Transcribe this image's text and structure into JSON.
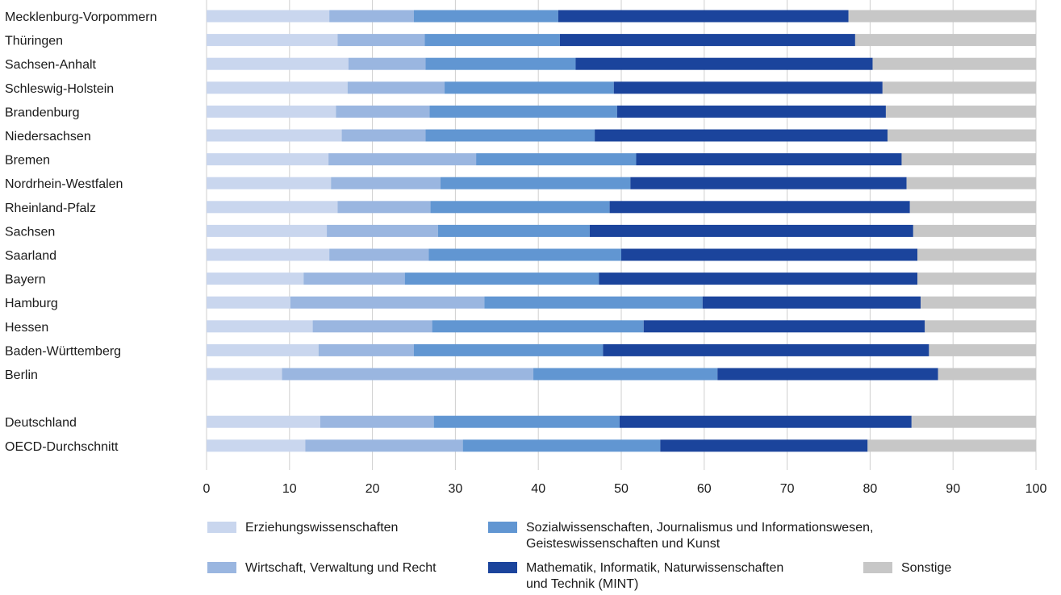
{
  "chart_data": {
    "type": "bar",
    "orientation": "horizontal",
    "stacked": true,
    "categories": [
      "Mecklenburg-Vorpommern",
      "Thüringen",
      "Sachsen-Anhalt",
      "Schleswig-Holstein",
      "Brandenburg",
      "Niedersachsen",
      "Bremen",
      "Nordrhein-Westfalen",
      "Rheinland-Pfalz",
      "Sachsen",
      "Saarland",
      "Bayern",
      "Hamburg",
      "Hessen",
      "Baden-Württemberg",
      "Berlin",
      "",
      "Deutschland",
      "OECD-Durchschnitt"
    ],
    "series": [
      {
        "name": "Erziehungswissenschaften",
        "color": "#c9d6ee",
        "values": [
          14.8,
          15.8,
          17.1,
          17.0,
          15.6,
          16.3,
          14.7,
          15.0,
          15.8,
          14.5,
          14.8,
          11.7,
          10.1,
          12.8,
          13.5,
          9.1,
          null,
          13.7,
          11.9
        ]
      },
      {
        "name": "Wirtschaft, Verwaltung und Recht",
        "color": "#9ab6e0",
        "values": [
          10.2,
          10.5,
          9.3,
          11.7,
          11.3,
          10.1,
          17.8,
          13.2,
          11.2,
          13.4,
          12.0,
          12.2,
          23.4,
          14.4,
          11.5,
          30.3,
          null,
          13.7,
          19.0
        ]
      },
      {
        "name": "Sozialwissenschaften, Journalismus und Informationswesen, Geisteswissenschaften und Kunst",
        "color": "#6196d2",
        "values": [
          17.4,
          16.3,
          18.1,
          20.4,
          22.6,
          20.4,
          19.3,
          22.9,
          21.6,
          18.3,
          23.2,
          23.4,
          26.3,
          25.5,
          22.8,
          22.2,
          null,
          22.4,
          23.8
        ]
      },
      {
        "name": "Mathematik, Informatik, Naturwissenschaften und Technik (MINT)",
        "color": "#1b449c",
        "values": [
          35.0,
          35.6,
          35.8,
          32.4,
          32.4,
          35.3,
          32.0,
          33.3,
          36.2,
          39.0,
          35.7,
          38.4,
          26.3,
          33.9,
          39.3,
          26.6,
          null,
          35.2,
          25.0
        ]
      },
      {
        "name": "Sonstige",
        "color": "#c7c7c7",
        "values": [
          22.6,
          21.8,
          19.7,
          18.5,
          18.1,
          17.9,
          16.2,
          15.6,
          15.2,
          14.8,
          14.3,
          14.3,
          13.9,
          13.4,
          12.9,
          11.8,
          null,
          15.0,
          20.3
        ]
      }
    ],
    "xlim": [
      0,
      100
    ],
    "xticks": [
      "0",
      "10",
      "20",
      "30",
      "40",
      "50",
      "60",
      "70",
      "80",
      "90",
      "100"
    ],
    "grid": true,
    "legend_position": "bottom"
  },
  "legend": [
    {
      "label": "Erziehungswissenschaften",
      "color": "#c9d6ee"
    },
    {
      "label": "Sozialwissenschaften, Journalismus und Informationswesen,\nGeisteswissenschaften und Kunst",
      "color": "#6196d2"
    },
    {
      "label": "Wirtschaft, Verwaltung und Recht",
      "color": "#9ab6e0"
    },
    {
      "label": "Mathematik, Informatik, Naturwissenschaften\nund Technik (MINT)",
      "color": "#1b449c"
    },
    {
      "label": "Sonstige",
      "color": "#c7c7c7"
    }
  ]
}
